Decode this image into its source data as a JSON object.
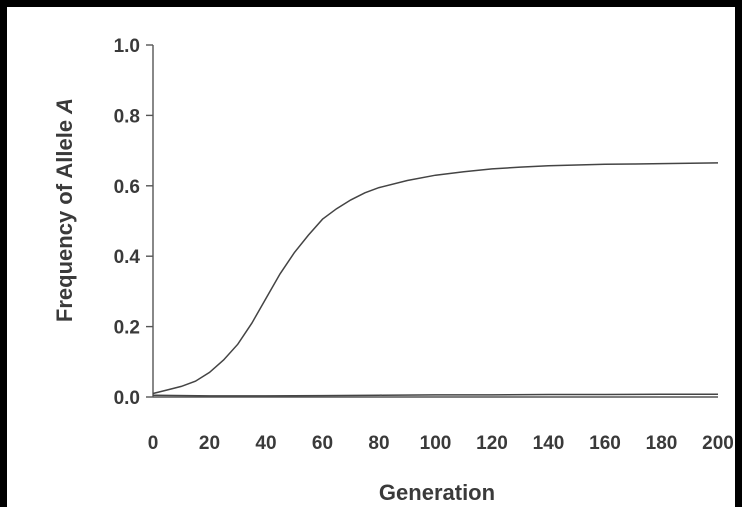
{
  "chart_data": {
    "type": "line",
    "xlabel": "Generation",
    "ylabel_prefix": "Frequency of Allele ",
    "ylabel_italic": "A",
    "xlim": [
      0,
      200
    ],
    "ylim": [
      0,
      1
    ],
    "xticks": [
      "0",
      "20",
      "40",
      "60",
      "80",
      "100",
      "120",
      "140",
      "160",
      "180",
      "200"
    ],
    "yticks": [
      "0.0",
      "0.2",
      "0.4",
      "0.6",
      "0.8",
      "1.0"
    ],
    "grid": false,
    "series": [
      {
        "x": [
          0,
          5,
          10,
          15,
          20,
          25,
          30,
          35,
          40,
          45,
          50,
          55,
          60,
          65,
          70,
          75,
          80,
          90,
          100,
          110,
          120,
          130,
          140,
          150,
          160,
          170,
          180,
          190,
          200
        ],
        "y": [
          0.01,
          0.02,
          0.03,
          0.045,
          0.07,
          0.105,
          0.15,
          0.21,
          0.28,
          0.35,
          0.41,
          0.46,
          0.505,
          0.535,
          0.56,
          0.58,
          0.595,
          0.615,
          0.63,
          0.64,
          0.648,
          0.653,
          0.657,
          0.659,
          0.661,
          0.662,
          0.663,
          0.664,
          0.665
        ]
      },
      {
        "x": [
          0,
          20,
          40,
          60,
          80,
          100,
          120,
          140,
          160,
          180,
          200
        ],
        "y": [
          0.005,
          0.003,
          0.003,
          0.004,
          0.005,
          0.006,
          0.006,
          0.007,
          0.007,
          0.008,
          0.008
        ]
      }
    ]
  }
}
